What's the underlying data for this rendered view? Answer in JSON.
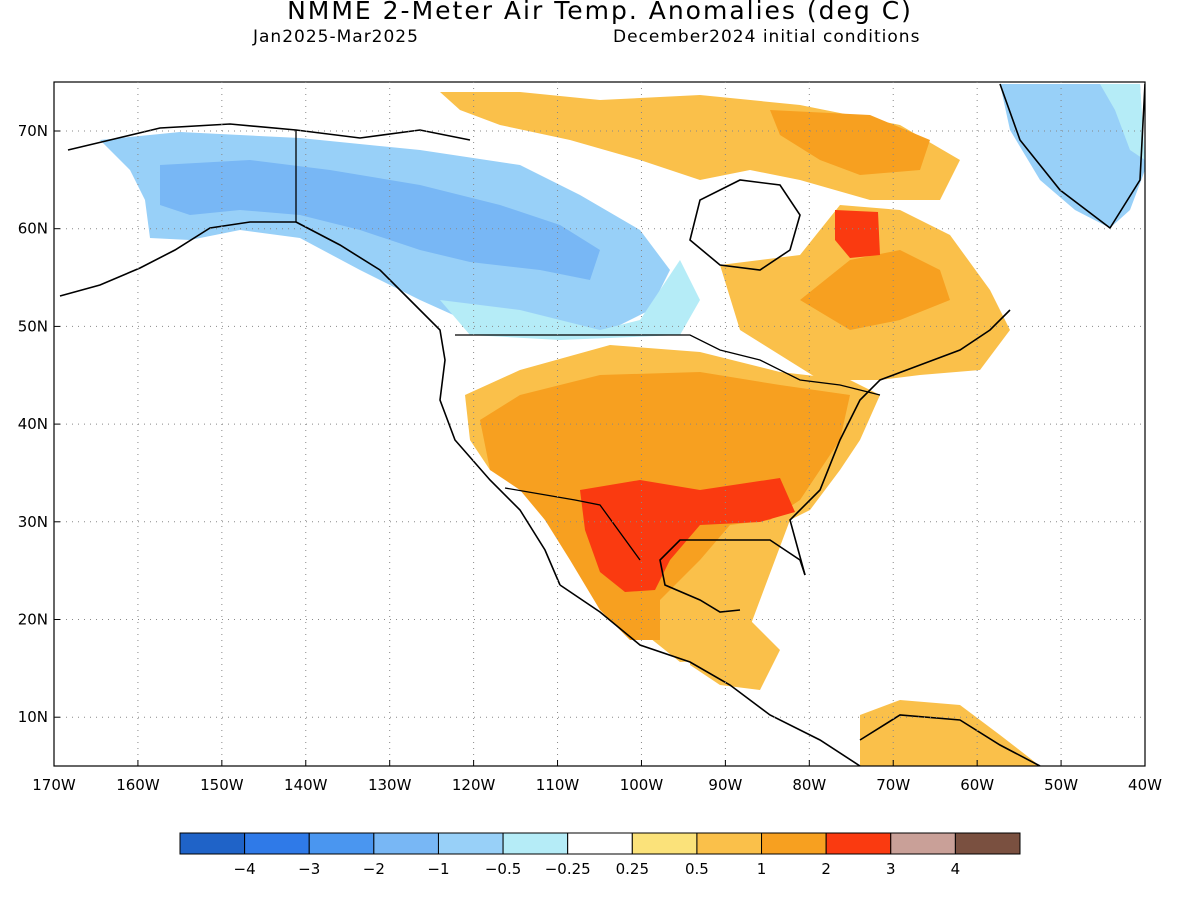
{
  "header": {
    "title": "NMME 2-Meter Air Temp. Anomalies (deg C)",
    "period": "Jan2025-Mar2025",
    "conditions": "December2024 initial conditions"
  },
  "axes": {
    "lat_labels": [
      "70N",
      "60N",
      "50N",
      "40N",
      "30N",
      "20N",
      "10N"
    ],
    "lon_labels": [
      "170W",
      "160W",
      "150W",
      "140W",
      "130W",
      "120W",
      "110W",
      "100W",
      "90W",
      "80W",
      "70W",
      "60W",
      "50W",
      "40W"
    ]
  },
  "legend": {
    "colors": [
      "#1f63c8",
      "#2f7ae8",
      "#4a96f0",
      "#78b7f5",
      "#98d0f8",
      "#b5ecf7",
      "#ffffff",
      "#fbe27a",
      "#fac04a",
      "#f7a020",
      "#fa3a10",
      "#c9a098",
      "#7a5040"
    ],
    "labels": [
      "-4",
      "-3",
      "-2",
      "-1",
      "-0.5",
      "-0.25",
      "0.25",
      "0.5",
      "1",
      "2",
      "3",
      "4"
    ]
  }
}
